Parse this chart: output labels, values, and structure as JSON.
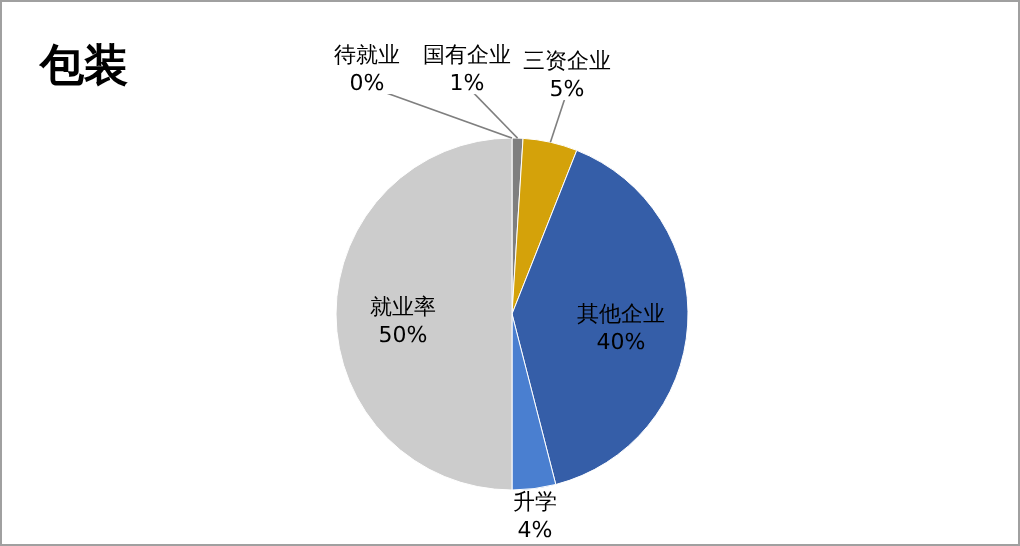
{
  "chart_data": {
    "type": "pie",
    "title": "包装",
    "categories": [
      "待就业",
      "国有企业",
      "三资企业",
      "其他企业",
      "升学",
      "就业率"
    ],
    "values": [
      0,
      1,
      5,
      40,
      4,
      50
    ],
    "value_labels": [
      "0%",
      "1%",
      "5%",
      "40%",
      "4%",
      "50%"
    ],
    "colors": [
      "#a5a5a5",
      "#7f7f7f",
      "#d4a20a",
      "#355ea8",
      "#4a7fd0",
      "#cccccc"
    ],
    "legend": false
  }
}
